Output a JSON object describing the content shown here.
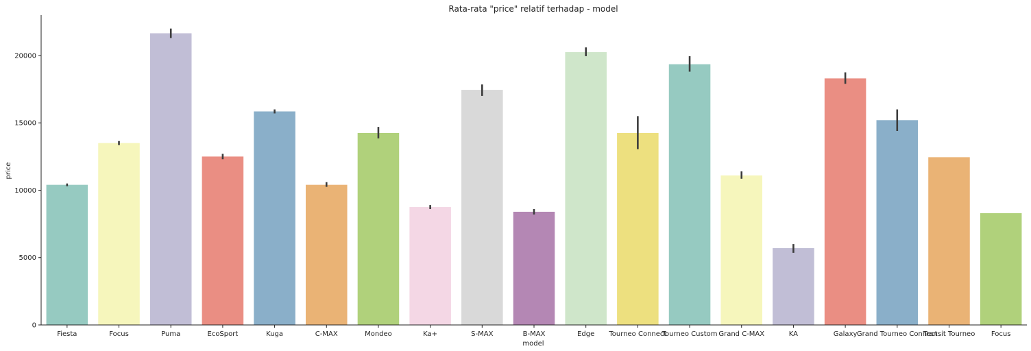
{
  "chart_data": {
    "type": "bar",
    "title": "Rata-rata \"price\" relatif terhadap - model",
    "xlabel": "model",
    "ylabel": "price",
    "ylim": [
      0,
      23000
    ],
    "yticks": [
      0,
      5000,
      10000,
      15000,
      20000
    ],
    "grid": false,
    "categories": [
      "Fiesta",
      "Focus",
      "Puma",
      "EcoSport",
      "Kuga",
      "C-MAX",
      "Mondeo",
      "Ka+",
      "S-MAX",
      "B-MAX",
      "Edge",
      "Tourneo Connect",
      "Tourneo Custom",
      "Grand C-MAX",
      "KA",
      "Galaxy",
      "Grand Tourneo Connect",
      "Transit Tourneo",
      "Focus"
    ],
    "values": [
      10400,
      13500,
      21650,
      12500,
      15850,
      10400,
      14250,
      8750,
      17450,
      8400,
      20250,
      14250,
      19350,
      11100,
      5700,
      18300,
      15200,
      12450,
      8300
    ],
    "error_low": [
      10300,
      13350,
      21300,
      12300,
      15700,
      10250,
      13850,
      8600,
      17000,
      8200,
      19950,
      13050,
      18800,
      10850,
      5350,
      17900,
      14400,
      null,
      null
    ],
    "error_high": [
      10500,
      13650,
      22000,
      12700,
      16000,
      10600,
      14700,
      8900,
      17850,
      8600,
      20600,
      15500,
      19950,
      11400,
      6000,
      18750,
      16000,
      null,
      null
    ],
    "colors": [
      "#96cac1",
      "#f6f6bc",
      "#c1bed6",
      "#ea8e83",
      "#8aafc9",
      "#eab375",
      "#b0d17b",
      "#f4d7e5",
      "#d9d9d9",
      "#b487b4",
      "#cfe6ca",
      "#ede07f",
      "#96cac1",
      "#f6f6bc",
      "#c1bed6",
      "#ea8e83",
      "#8aafc9",
      "#eab375",
      "#b0d17b"
    ],
    "error_bar_color": "#3c3c3c"
  }
}
